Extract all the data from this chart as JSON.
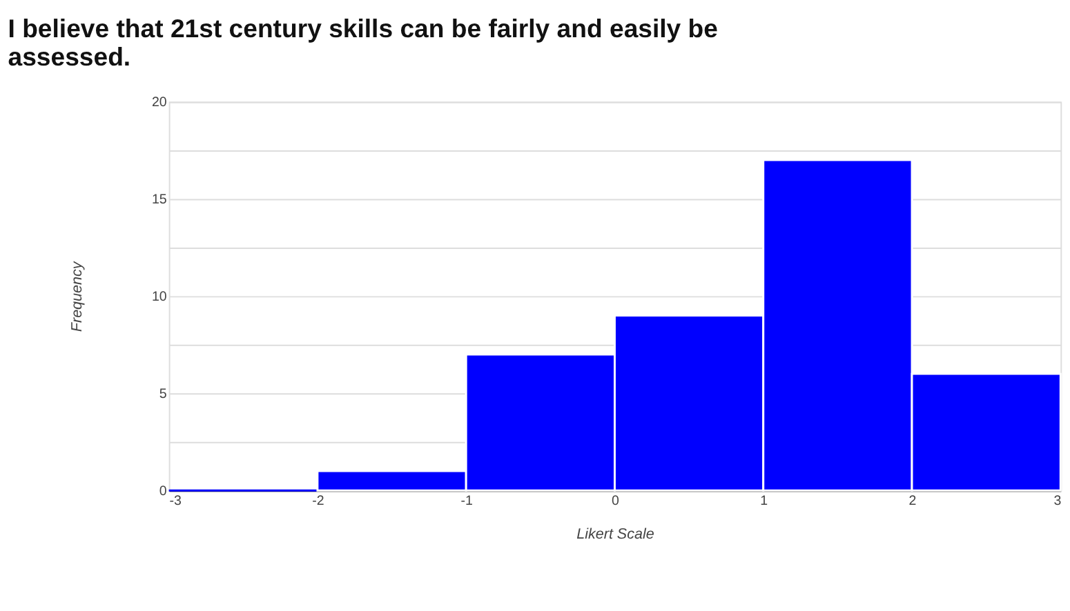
{
  "chart_data": {
    "type": "histogram",
    "title": "I believe that 21st century skills can be fairly and easily be assessed.",
    "xlabel": "Likert Scale",
    "ylabel": "Frequency",
    "bins": [
      -3,
      -2,
      -1,
      0,
      1,
      2,
      3
    ],
    "values": [
      0,
      1,
      7,
      9,
      17,
      6
    ],
    "color": "#0000ff",
    "xlim": [
      -3,
      3
    ],
    "xticks": [
      -3,
      -2,
      -1,
      0,
      1,
      2,
      3
    ],
    "ylim": [
      0,
      20
    ],
    "yticks": [
      0,
      {
        "value": 2.5,
        "label": null
      },
      5,
      {
        "value": 7.5,
        "label": null
      },
      10,
      {
        "value": 12.5,
        "label": null
      },
      15,
      {
        "value": 17.5,
        "label": null
      },
      20
    ],
    "grid": "y"
  }
}
